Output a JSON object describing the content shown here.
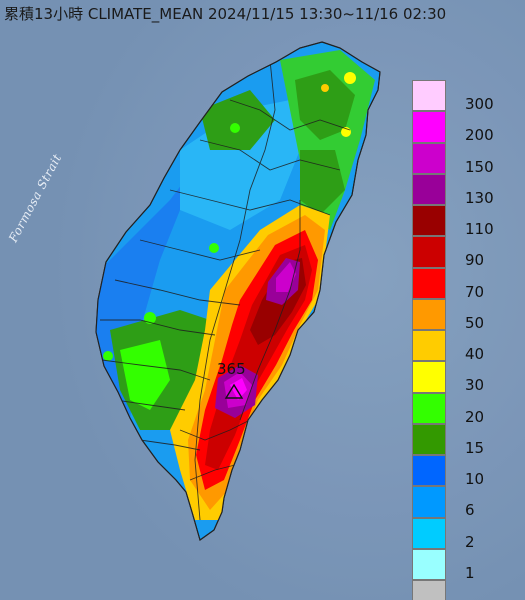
{
  "title": "累積13小時 CLIMATE_MEAN 2024/11/15 13:30~11/16 02:30",
  "sea_label": "Formosa Strait",
  "max_marker": {
    "value_label": "365",
    "icon": "triangle-icon"
  },
  "legend": {
    "entries": [
      {
        "label": "300",
        "color": "#ffccff"
      },
      {
        "label": "200",
        "color": "#ff00ff"
      },
      {
        "label": "150",
        "color": "#cc00cc"
      },
      {
        "label": "130",
        "color": "#990099"
      },
      {
        "label": "110",
        "color": "#990000"
      },
      {
        "label": "90",
        "color": "#cc0000"
      },
      {
        "label": "70",
        "color": "#ff0000"
      },
      {
        "label": "50",
        "color": "#ff9900"
      },
      {
        "label": "40",
        "color": "#ffcc00"
      },
      {
        "label": "30",
        "color": "#ffff00"
      },
      {
        "label": "20",
        "color": "#33ff00"
      },
      {
        "label": "15",
        "color": "#339900"
      },
      {
        "label": "10",
        "color": "#0066ff"
      },
      {
        "label": "6",
        "color": "#0099ff"
      },
      {
        "label": "2",
        "color": "#00ccff"
      },
      {
        "label": "1",
        "color": "#99ffff"
      },
      {
        "label": "",
        "color": "#c0c0c0"
      }
    ]
  }
}
